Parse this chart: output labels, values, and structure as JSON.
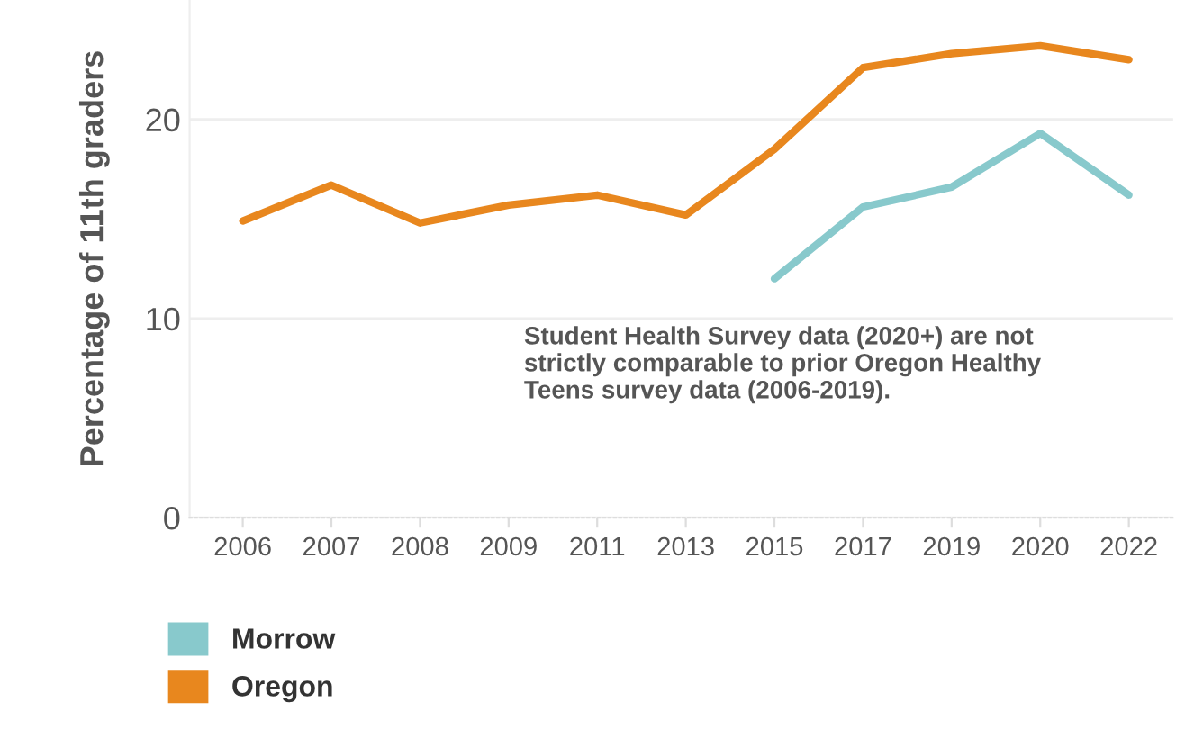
{
  "chart_data": {
    "type": "line",
    "ylabel": "Percentage of 11th graders",
    "categories": [
      "2006",
      "2007",
      "2008",
      "2009",
      "2011",
      "2013",
      "2015",
      "2017",
      "2019",
      "2020",
      "2022"
    ],
    "series": [
      {
        "name": "Morrow",
        "color": "#88c9cc",
        "values": [
          null,
          null,
          null,
          null,
          null,
          null,
          12.0,
          15.6,
          16.6,
          19.3,
          16.2
        ]
      },
      {
        "name": "Oregon",
        "color": "#e8871e",
        "values": [
          14.9,
          16.7,
          14.8,
          15.7,
          16.2,
          15.2,
          18.5,
          22.6,
          23.3,
          23.7,
          23.0
        ]
      }
    ],
    "ylim": [
      0,
      26
    ],
    "yticks": [
      0,
      10,
      20
    ],
    "grid": "y",
    "legend": "bottom left",
    "marker": "none",
    "line_style": "solid",
    "annotations": [
      "Student Health Survey data (2020+) are not\nstrictly comparable to prior Oregon Healthy\nTeens survey data (2006-2019)."
    ]
  }
}
